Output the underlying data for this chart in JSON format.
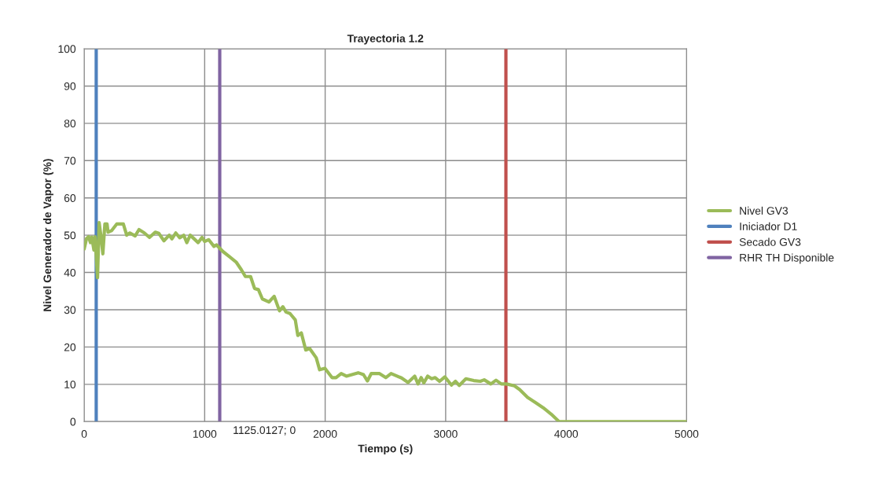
{
  "chart_data": {
    "type": "line",
    "title": "Trayectoria 1.2",
    "xlabel": "Tiempo (s)",
    "ylabel": "Nivel Generador de Vapor (%)",
    "xlim": [
      0,
      5000
    ],
    "xticks": [
      0,
      1000,
      2000,
      3000,
      4000,
      5000
    ],
    "ylim": [
      0,
      100
    ],
    "yticks": [
      0,
      10,
      20,
      30,
      40,
      50,
      60,
      70,
      80,
      90,
      100
    ],
    "grid": true,
    "legend": "right",
    "marker": "none",
    "line_style": "solid",
    "series": [
      {
        "name": "Nivel GV3",
        "color": "#9bbb59",
        "x": [
          0,
          20,
          37,
          52,
          63,
          81,
          90,
          111,
          124,
          139,
          155,
          172,
          190,
          198,
          227,
          270,
          325,
          353,
          379,
          423,
          455,
          499,
          542,
          590,
          619,
          662,
          706,
          728,
          760,
          793,
          826,
          852,
          880,
          946,
          978,
          1000,
          1033,
          1077,
          1098,
          1152,
          1207,
          1261,
          1305,
          1338,
          1381,
          1414,
          1446,
          1479,
          1534,
          1577,
          1621,
          1649,
          1675,
          1708,
          1752,
          1773,
          1802,
          1839,
          1871,
          1926,
          1954,
          1998,
          2057,
          2090,
          2133,
          2176,
          2274,
          2318,
          2351,
          2383,
          2449,
          2503,
          2547,
          2634,
          2688,
          2743,
          2771,
          2797,
          2819,
          2851,
          2884,
          2913,
          2950,
          2993,
          3048,
          3081,
          3113,
          3168,
          3233,
          3288,
          3320,
          3375,
          3418,
          3462,
          3505,
          3571,
          3614,
          3680,
          3745,
          3810,
          3876,
          3941,
          4000,
          4500,
          5000
        ],
        "values": [
          46.3,
          49.1,
          49.6,
          48,
          49.5,
          46,
          49.6,
          38.6,
          53.4,
          49.8,
          45,
          53,
          53,
          50.8,
          51.2,
          53,
          53,
          50,
          50.6,
          49.8,
          51.5,
          50.6,
          49.4,
          50.8,
          50.5,
          48.5,
          50,
          49,
          50.6,
          49.3,
          50,
          48,
          50,
          48,
          49.4,
          48.3,
          48.8,
          47,
          47.4,
          45.6,
          44.2,
          42.8,
          40.7,
          38.9,
          38.9,
          35.7,
          35.4,
          32.9,
          32.1,
          33.6,
          29.7,
          30.8,
          29.4,
          29,
          27.3,
          23.1,
          23.8,
          19.2,
          19.6,
          17.1,
          13.9,
          14.3,
          11.8,
          11.8,
          12.9,
          12.2,
          13.1,
          12.6,
          10.9,
          12.9,
          12.9,
          11.8,
          12.9,
          11.7,
          10.5,
          12.2,
          10.1,
          11.8,
          10.4,
          12.2,
          11.5,
          11.8,
          10.8,
          12,
          9.8,
          10.8,
          9.7,
          11.5,
          11,
          10.8,
          11.2,
          10.1,
          11.1,
          10.1,
          10.1,
          9.6,
          8.6,
          6.5,
          5.1,
          3.7,
          2,
          0,
          0,
          0,
          0
        ]
      },
      {
        "name": "Iniciador D1",
        "color": "#4f81bd",
        "x": [
          100,
          100
        ],
        "values": [
          0,
          100
        ]
      },
      {
        "name": "Secado GV3",
        "color": "#c0504d",
        "x": [
          3500,
          3500
        ],
        "values": [
          0,
          100
        ]
      },
      {
        "name": "RHR TH Disponible",
        "color": "#8064a2",
        "x": [
          1125.0127,
          1125.0127
        ],
        "values": [
          0,
          100
        ]
      }
    ],
    "annotations": [
      {
        "text": "1125.0127; 0",
        "x": 1125.0127,
        "y": 0
      }
    ]
  }
}
